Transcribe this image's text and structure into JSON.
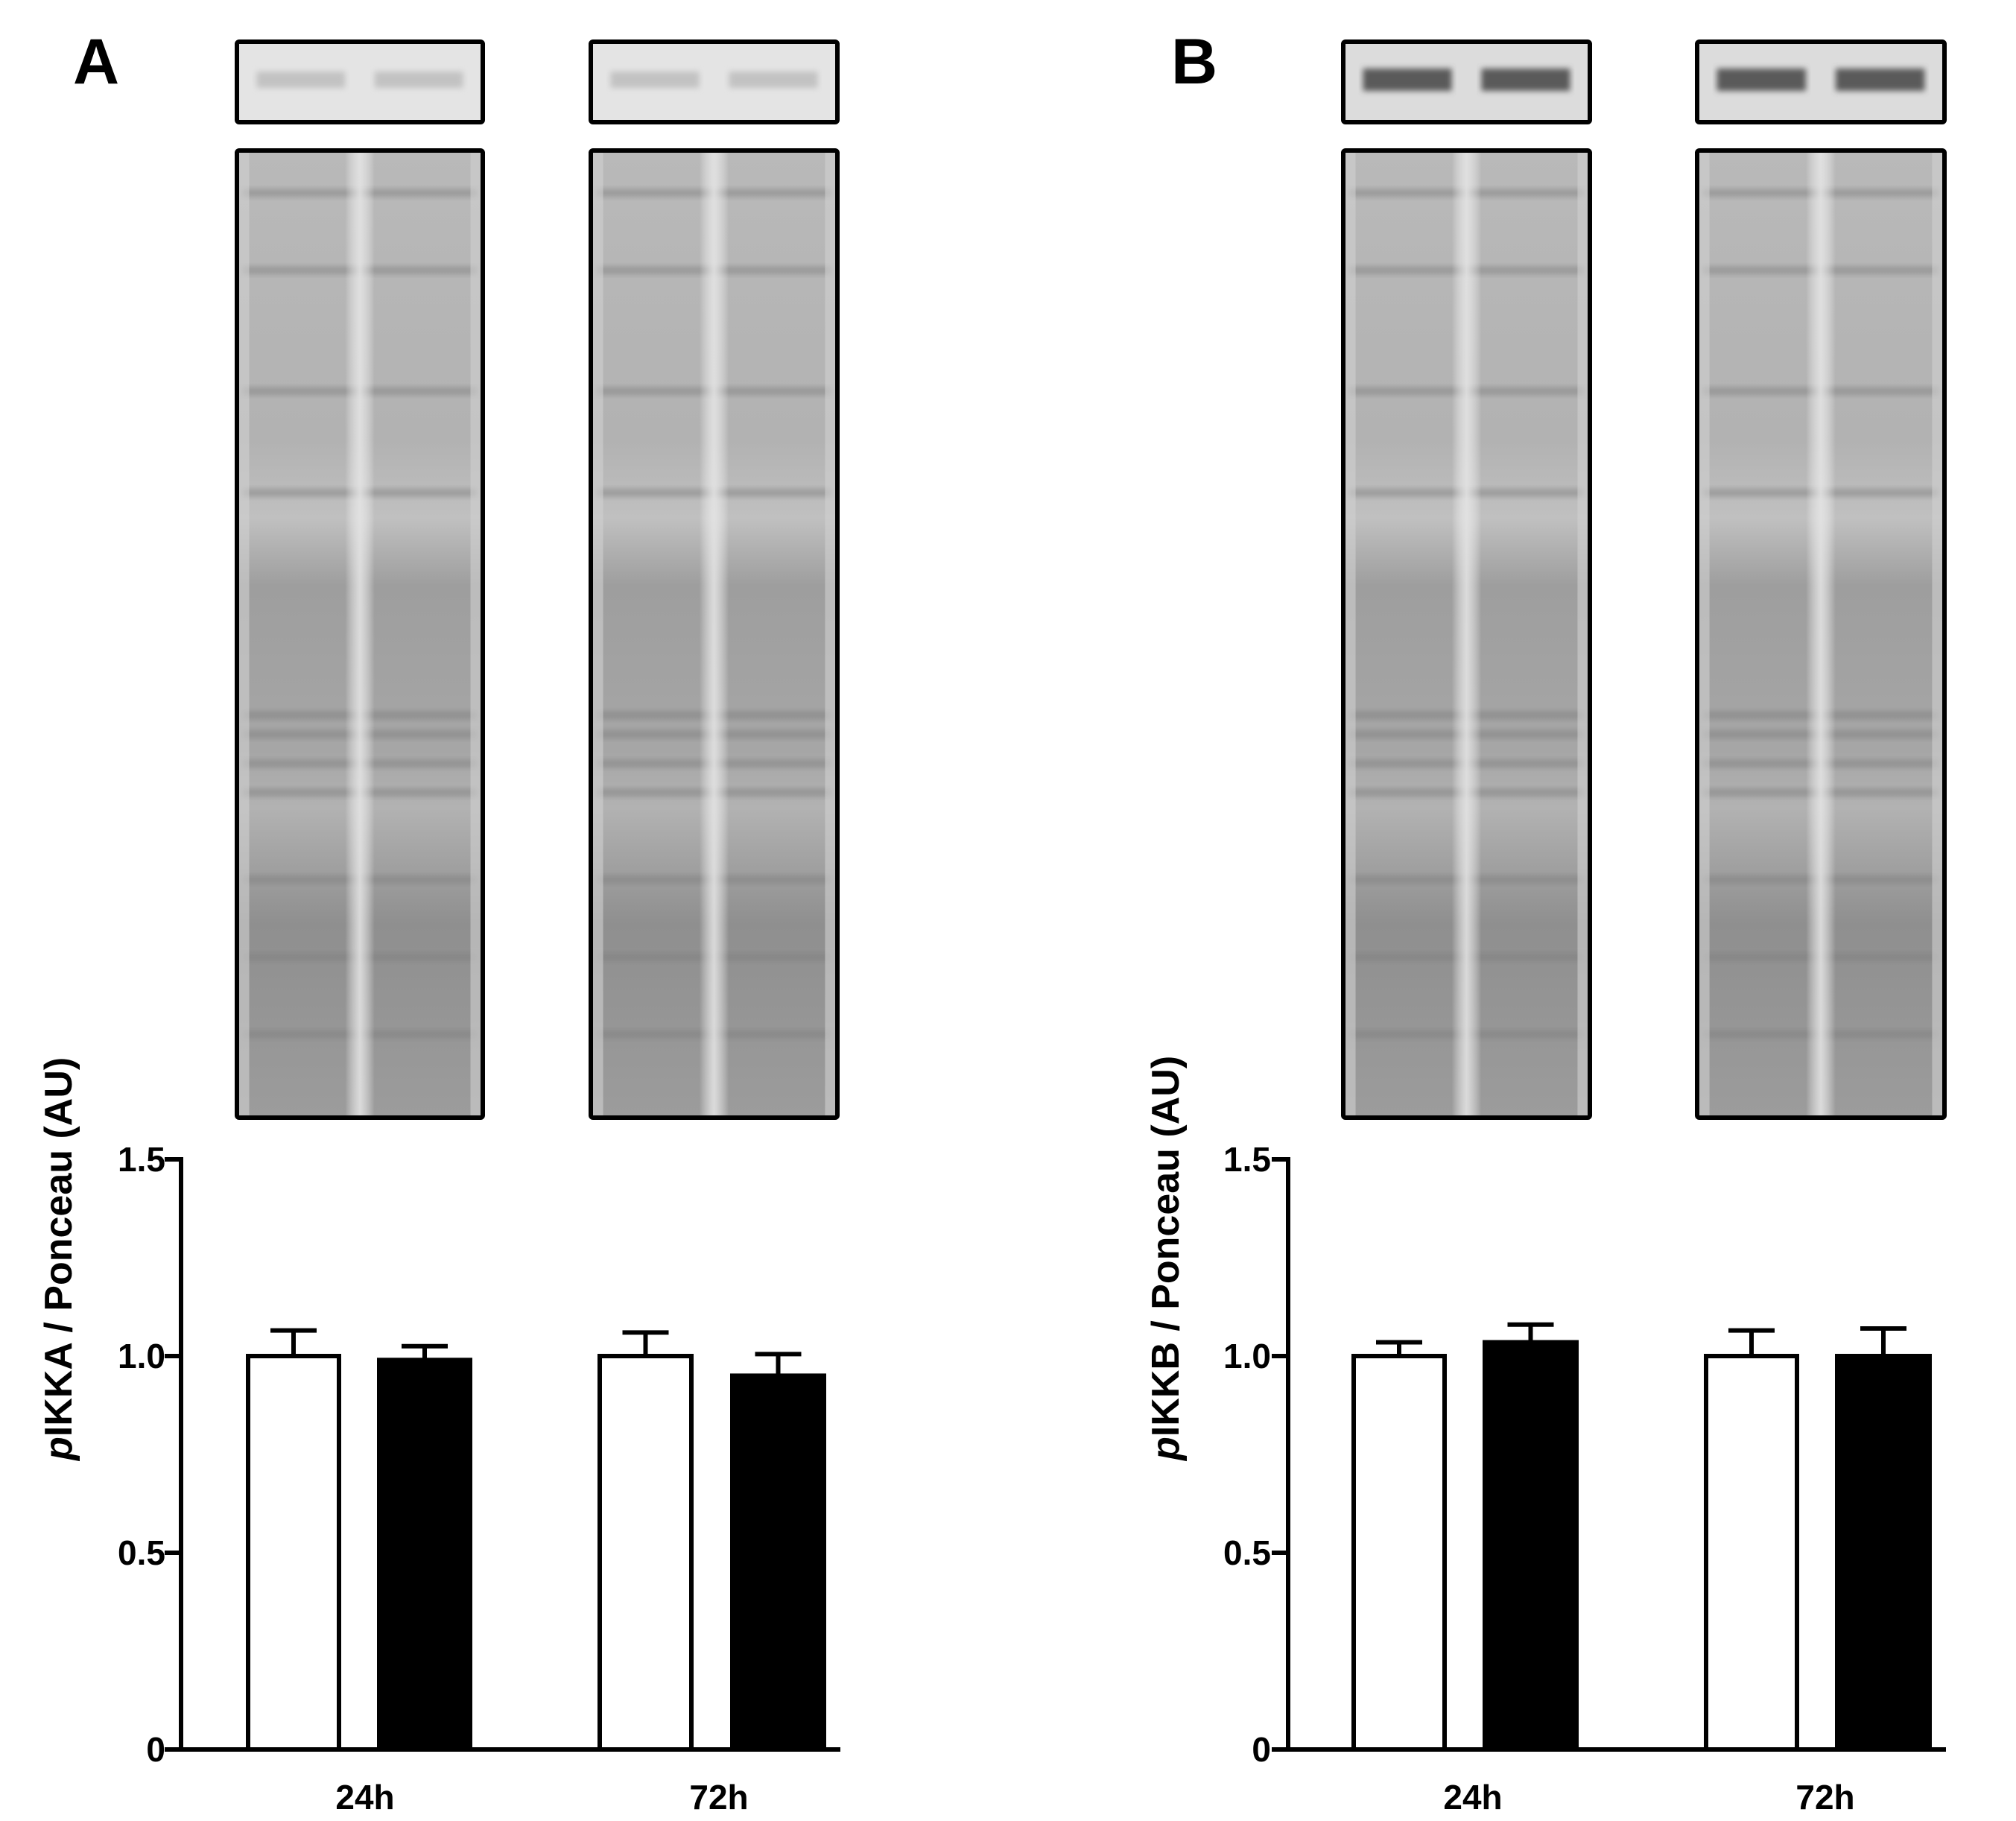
{
  "colors": {
    "control_bar": "#ffffff",
    "treated_bar": "#000000",
    "axis": "#000000",
    "blot_background": "#a6a6a6"
  },
  "panels": [
    {
      "letter": "A",
      "ylabel_prefix": "p",
      "ylabel_rest": "IKKA / Ponceau (AU)"
    },
    {
      "letter": "B",
      "ylabel_prefix": "p",
      "ylabel_rest": "IKKB / Ponceau (AU)"
    }
  ],
  "chart_data": [
    {
      "type": "bar",
      "categories": [
        "24h",
        "72h"
      ],
      "ylabel": "pIKKA / Ponceau (AU)",
      "ylim": [
        0,
        1.5
      ],
      "yticks": [
        "0",
        "0.5",
        "1.0",
        "1.5"
      ],
      "series": [
        {
          "values": [
            1.0,
            1.0
          ],
          "errors": [
            0.065,
            0.06
          ],
          "fill": "#ffffff"
        },
        {
          "values": [
            0.99,
            0.95
          ],
          "errors": [
            0.035,
            0.055
          ],
          "fill": "#000000"
        }
      ]
    },
    {
      "type": "bar",
      "categories": [
        "24h",
        "72h"
      ],
      "ylabel": "pIKKB / Ponceau (AU)",
      "ylim": [
        0,
        1.5
      ],
      "yticks": [
        "0",
        "0.5",
        "1.0",
        "1.5"
      ],
      "series": [
        {
          "values": [
            1.0,
            1.0
          ],
          "errors": [
            0.035,
            0.065
          ],
          "fill": "#ffffff"
        },
        {
          "values": [
            1.035,
            1.0
          ],
          "errors": [
            0.045,
            0.07
          ],
          "fill": "#000000"
        }
      ]
    }
  ]
}
